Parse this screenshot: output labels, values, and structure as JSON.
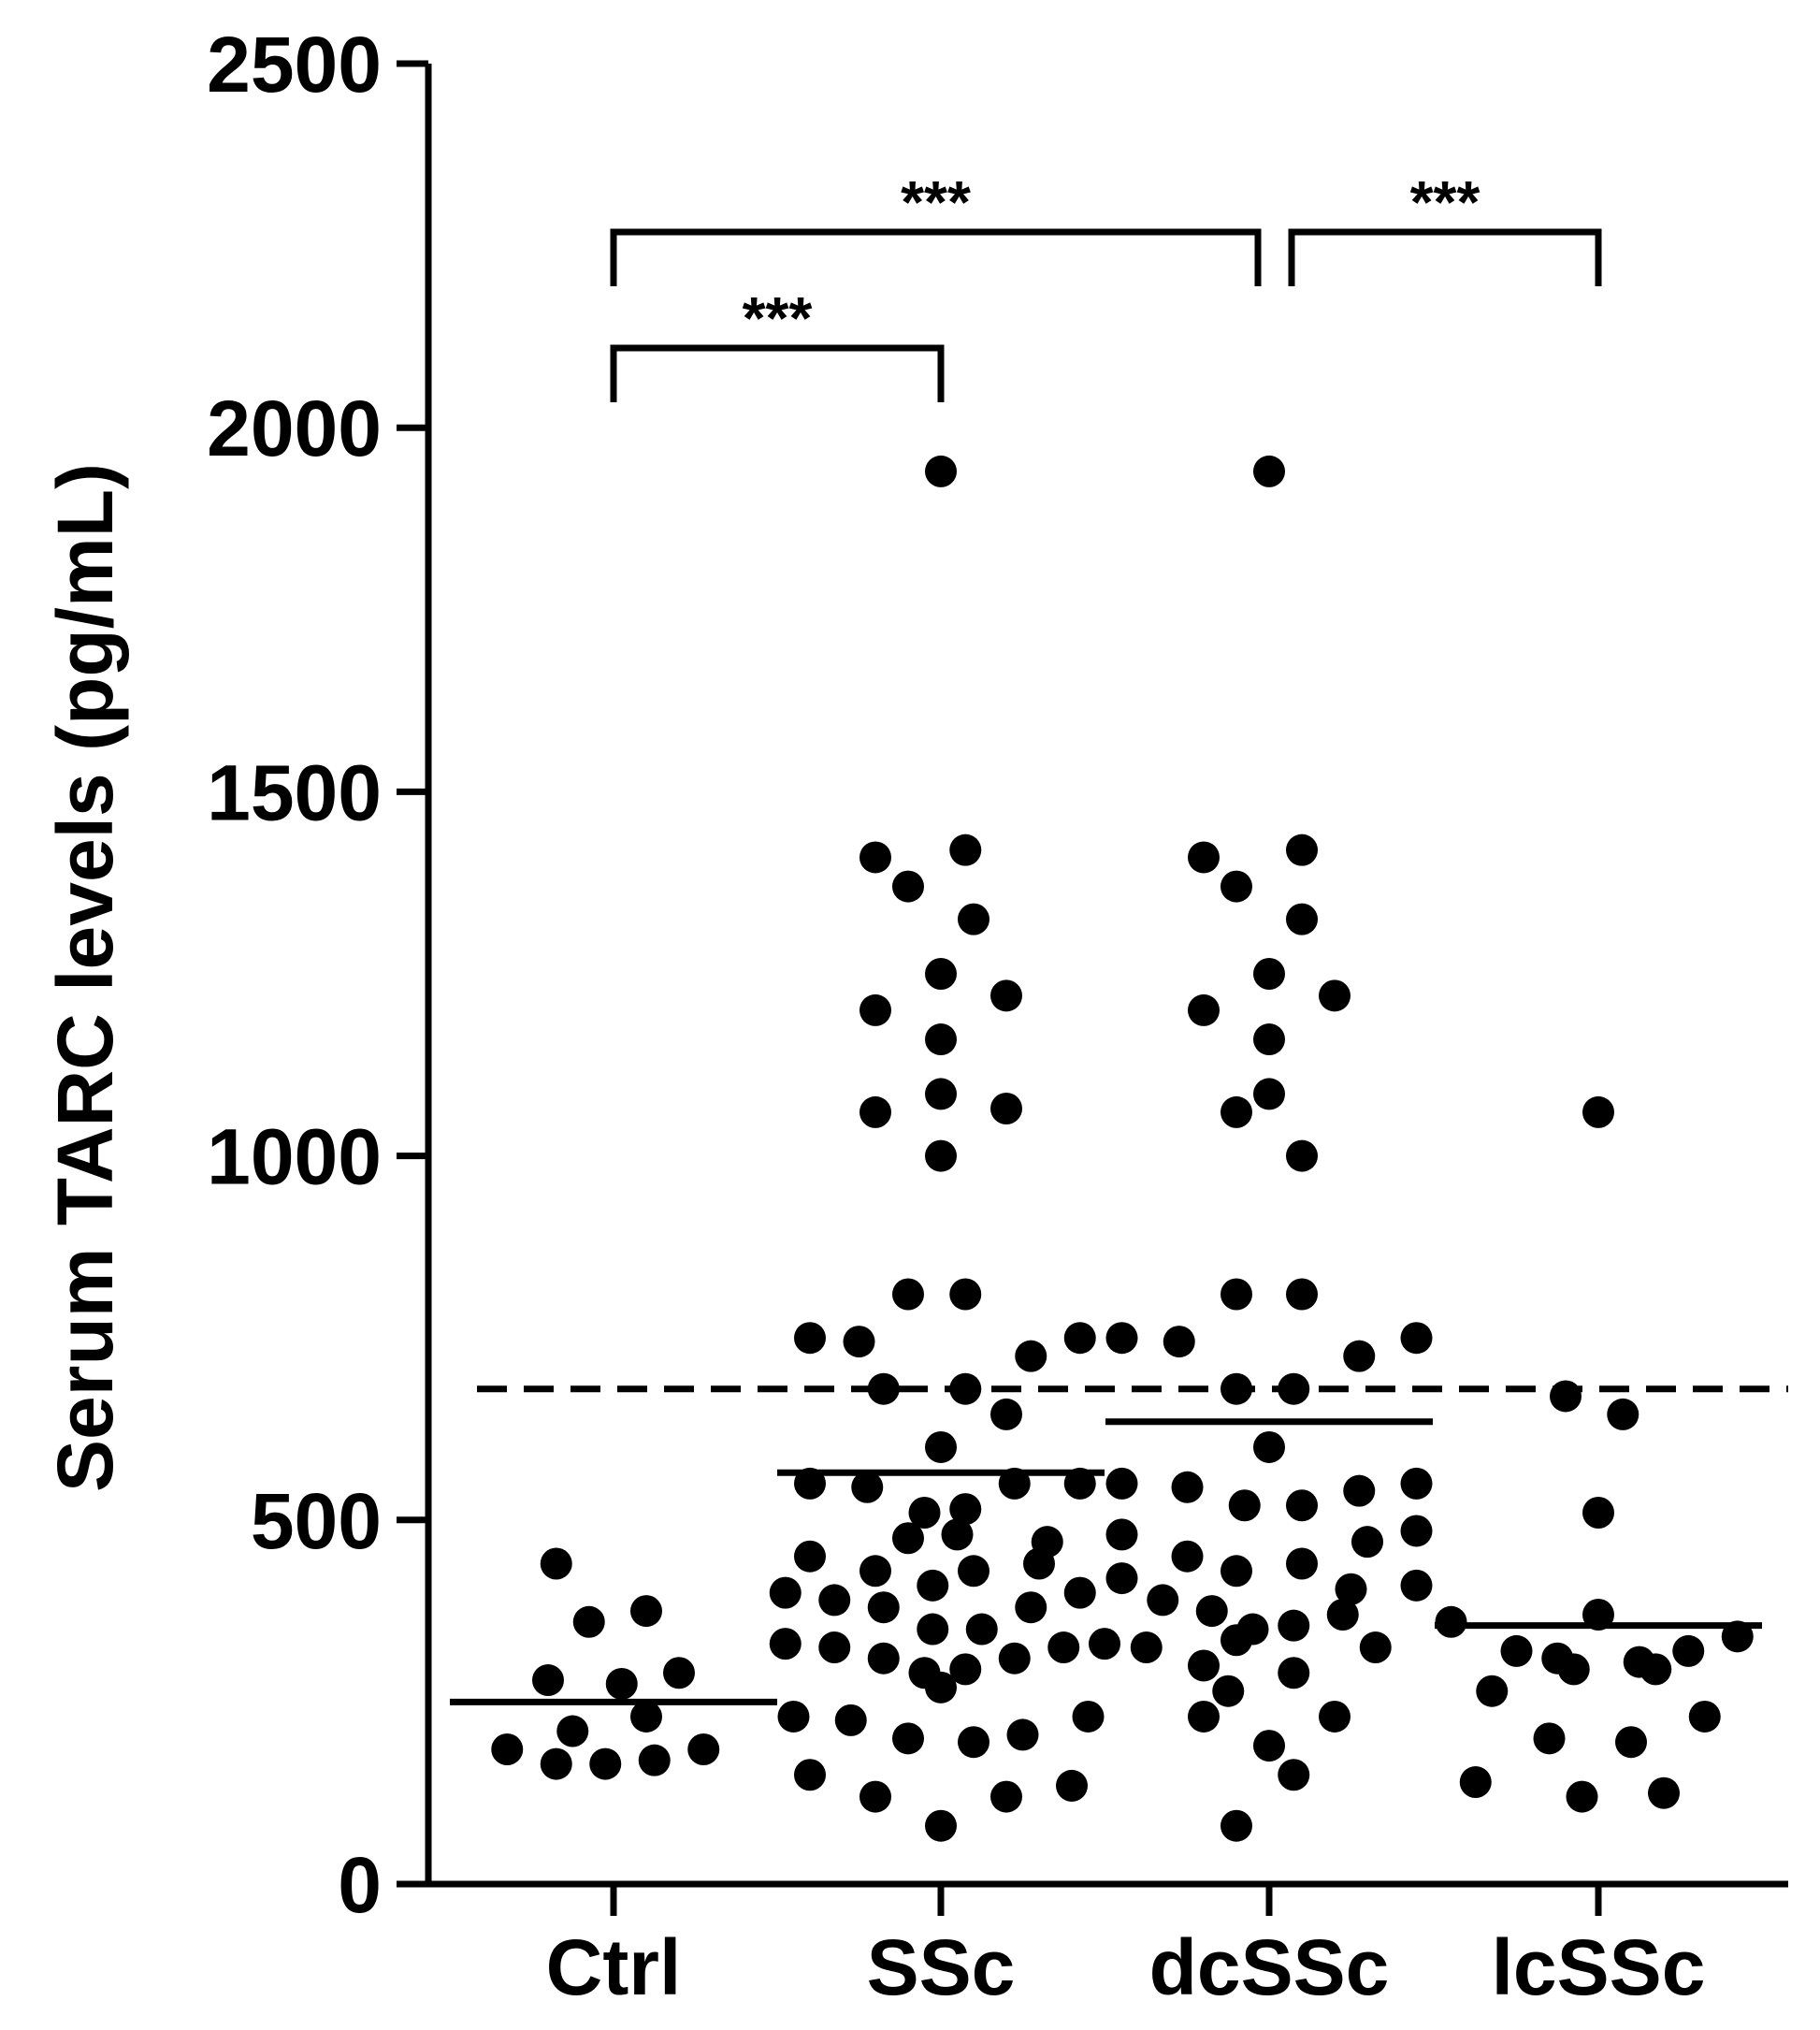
{
  "chart_data": {
    "type": "scatter",
    "ylabel": "Serum TARC levels (pg/mL)",
    "xlabel": "",
    "ylim": [
      0,
      2500
    ],
    "yticks": [
      0,
      500,
      1000,
      1500,
      2000,
      2500
    ],
    "categories": [
      "Ctrl",
      "SSc",
      "dcSSc",
      "lcSSc"
    ],
    "reference_line": 680,
    "series": [
      {
        "category": "Ctrl",
        "mean": 250,
        "points": [
          [
            -0.14,
            440
          ],
          [
            -0.06,
            360
          ],
          [
            0.08,
            375
          ],
          [
            -0.16,
            280
          ],
          [
            0.02,
            275
          ],
          [
            0.16,
            290
          ],
          [
            -0.1,
            210
          ],
          [
            0.08,
            230
          ],
          [
            -0.26,
            185
          ],
          [
            -0.14,
            165
          ],
          [
            -0.02,
            165
          ],
          [
            0.1,
            170
          ],
          [
            0.22,
            185
          ]
        ]
      },
      {
        "category": "SSc",
        "mean": 565,
        "points": [
          [
            0,
            1940
          ],
          [
            -0.16,
            1410
          ],
          [
            -0.08,
            1370
          ],
          [
            0.06,
            1420
          ],
          [
            0.08,
            1325
          ],
          [
            -0.16,
            1200
          ],
          [
            0,
            1250
          ],
          [
            0.16,
            1220
          ],
          [
            0,
            1160
          ],
          [
            -0.16,
            1060
          ],
          [
            0,
            1085
          ],
          [
            0.16,
            1065
          ],
          [
            0,
            1000
          ],
          [
            -0.08,
            810
          ],
          [
            0.06,
            810
          ],
          [
            -0.32,
            750
          ],
          [
            -0.2,
            745
          ],
          [
            0.22,
            725
          ],
          [
            0.34,
            750
          ],
          [
            -0.14,
            680
          ],
          [
            0.06,
            680
          ],
          [
            0.16,
            645
          ],
          [
            0,
            600
          ],
          [
            -0.32,
            550
          ],
          [
            -0.18,
            545
          ],
          [
            -0.04,
            510
          ],
          [
            0.06,
            515
          ],
          [
            0.18,
            550
          ],
          [
            0.34,
            550
          ],
          [
            -0.08,
            475
          ],
          [
            0.04,
            480
          ],
          [
            0.26,
            470
          ],
          [
            -0.32,
            450
          ],
          [
            -0.16,
            430
          ],
          [
            0.08,
            430
          ],
          [
            0.24,
            440
          ],
          [
            -0.02,
            410
          ],
          [
            -0.38,
            400
          ],
          [
            -0.26,
            390
          ],
          [
            -0.14,
            380
          ],
          [
            -0.02,
            350
          ],
          [
            0.1,
            350
          ],
          [
            0.22,
            380
          ],
          [
            0.34,
            400
          ],
          [
            -0.38,
            330
          ],
          [
            -0.26,
            325
          ],
          [
            -0.14,
            310
          ],
          [
            -0.04,
            290
          ],
          [
            0.06,
            295
          ],
          [
            0.18,
            310
          ],
          [
            0.3,
            325
          ],
          [
            0.4,
            330
          ],
          [
            0,
            270
          ],
          [
            -0.36,
            230
          ],
          [
            -0.22,
            225
          ],
          [
            -0.08,
            200
          ],
          [
            0.08,
            195
          ],
          [
            0.2,
            205
          ],
          [
            0.36,
            230
          ],
          [
            -0.32,
            150
          ],
          [
            -0.16,
            120
          ],
          [
            0.16,
            120
          ],
          [
            0.32,
            135
          ],
          [
            0,
            80
          ]
        ]
      },
      {
        "category": "dcSSc",
        "mean": 635,
        "points": [
          [
            0,
            1940
          ],
          [
            -0.16,
            1410
          ],
          [
            -0.08,
            1370
          ],
          [
            0.08,
            1420
          ],
          [
            0.08,
            1325
          ],
          [
            -0.16,
            1200
          ],
          [
            0,
            1250
          ],
          [
            0.16,
            1220
          ],
          [
            0,
            1160
          ],
          [
            -0.08,
            1060
          ],
          [
            0,
            1085
          ],
          [
            0.08,
            1000
          ],
          [
            -0.08,
            810
          ],
          [
            0.08,
            810
          ],
          [
            -0.36,
            750
          ],
          [
            -0.22,
            745
          ],
          [
            0.22,
            725
          ],
          [
            0.36,
            750
          ],
          [
            -0.08,
            680
          ],
          [
            0.06,
            680
          ],
          [
            0,
            600
          ],
          [
            -0.36,
            550
          ],
          [
            -0.2,
            545
          ],
          [
            -0.06,
            520
          ],
          [
            0.08,
            520
          ],
          [
            0.22,
            540
          ],
          [
            0.36,
            550
          ],
          [
            -0.36,
            480
          ],
          [
            0.24,
            470
          ],
          [
            0.36,
            485
          ],
          [
            -0.2,
            450
          ],
          [
            -0.08,
            430
          ],
          [
            0.08,
            440
          ],
          [
            -0.36,
            420
          ],
          [
            0.2,
            405
          ],
          [
            0.36,
            410
          ],
          [
            -0.26,
            390
          ],
          [
            -0.14,
            375
          ],
          [
            -0.04,
            350
          ],
          [
            0.06,
            355
          ],
          [
            0.18,
            370
          ],
          [
            -0.3,
            325
          ],
          [
            -0.16,
            300
          ],
          [
            -0.08,
            335
          ],
          [
            0.06,
            290
          ],
          [
            0.26,
            325
          ],
          [
            -0.1,
            265
          ],
          [
            -0.16,
            230
          ],
          [
            0.16,
            230
          ],
          [
            0,
            190
          ],
          [
            0.06,
            150
          ],
          [
            -0.08,
            80
          ]
        ]
      },
      {
        "category": "lcSSc",
        "mean": 355,
        "points": [
          [
            0,
            1060
          ],
          [
            -0.08,
            670
          ],
          [
            0.06,
            645
          ],
          [
            0,
            510
          ],
          [
            -0.36,
            360
          ],
          [
            0,
            370
          ],
          [
            -0.2,
            320
          ],
          [
            -0.1,
            310
          ],
          [
            0.1,
            305
          ],
          [
            0.22,
            320
          ],
          [
            0.34,
            340
          ],
          [
            -0.26,
            265
          ],
          [
            -0.06,
            295
          ],
          [
            0.14,
            295
          ],
          [
            0.26,
            230
          ],
          [
            -0.12,
            200
          ],
          [
            0.08,
            195
          ],
          [
            -0.3,
            140
          ],
          [
            -0.04,
            120
          ],
          [
            0.16,
            125
          ]
        ]
      }
    ],
    "significance": [
      {
        "from": "Ctrl",
        "to": "SSc",
        "label": "***"
      },
      {
        "from": "Ctrl",
        "to": "dcSSc",
        "label": "***"
      },
      {
        "from": "dcSSc",
        "to": "lcSSc",
        "label": "***"
      }
    ]
  }
}
